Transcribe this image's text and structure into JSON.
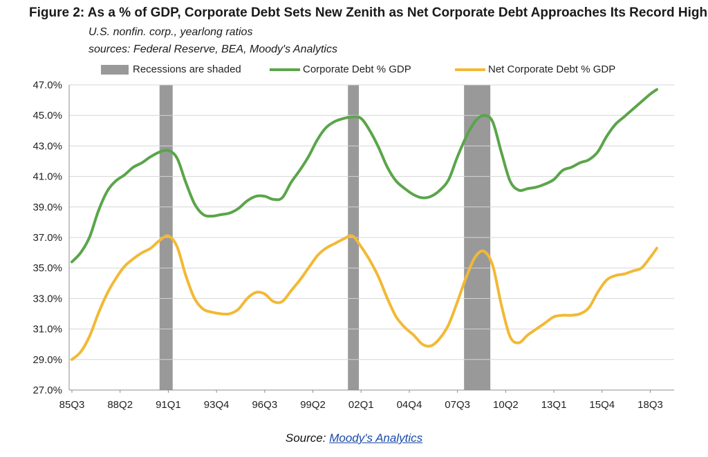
{
  "figure": {
    "title": "Figure 2: As a % of GDP, Corporate Debt Sets New Zenith as Net Corporate Debt Approaches Its Record High",
    "subtitle_1": "U.S. nonfin. corp., yearlong ratios",
    "subtitle_2": "sources: Federal Reserve, BEA, Moody's Analytics",
    "source_prefix": "Source: ",
    "source_link": "Moody's Analytics"
  },
  "legend": {
    "recessions": "Recessions are shaded",
    "corporate": "Corporate Debt % GDP",
    "net": "Net Corporate Debt % GDP"
  },
  "colors": {
    "corporate": "#5aa54a",
    "net": "#f2b935",
    "recession": "#999999",
    "grid": "#d6d6d6",
    "axis": "#8c8c8c"
  },
  "chart_data": {
    "type": "line",
    "title": "Figure 2: As a % of GDP, Corporate Debt Sets New Zenith as Net Corporate Debt Approaches Its Record High",
    "x_ticks": [
      "85Q3",
      "88Q2",
      "91Q1",
      "93Q4",
      "96Q3",
      "99Q2",
      "02Q1",
      "04Q4",
      "07Q3",
      "10Q2",
      "13Q1",
      "15Q4",
      "18Q3"
    ],
    "x_range": [
      1985.5,
      2018.875
    ],
    "y_ticks": [
      "27.0%",
      "29.0%",
      "31.0%",
      "33.0%",
      "35.0%",
      "37.0%",
      "39.0%",
      "41.0%",
      "43.0%",
      "45.0%",
      "47.0%"
    ],
    "ylim": [
      27,
      47
    ],
    "grid": "horizontal",
    "legend_position": "top",
    "recessions": [
      [
        1990.5,
        1991.25
      ],
      [
        2001.25,
        2001.875
      ],
      [
        2007.875,
        2009.375
      ]
    ],
    "series": [
      {
        "name": "Corporate Debt % GDP",
        "points": [
          [
            1985.5,
            35.4
          ],
          [
            1986.0,
            36.0
          ],
          [
            1986.5,
            37.0
          ],
          [
            1987.0,
            38.7
          ],
          [
            1987.5,
            40.0
          ],
          [
            1988.0,
            40.7
          ],
          [
            1988.5,
            41.1
          ],
          [
            1989.0,
            41.6
          ],
          [
            1989.5,
            41.9
          ],
          [
            1990.0,
            42.3
          ],
          [
            1990.5,
            42.6
          ],
          [
            1991.0,
            42.7
          ],
          [
            1991.5,
            42.2
          ],
          [
            1992.0,
            40.6
          ],
          [
            1992.5,
            39.2
          ],
          [
            1993.0,
            38.5
          ],
          [
            1993.5,
            38.4
          ],
          [
            1994.0,
            38.5
          ],
          [
            1994.5,
            38.6
          ],
          [
            1995.0,
            38.9
          ],
          [
            1995.5,
            39.4
          ],
          [
            1996.0,
            39.7
          ],
          [
            1996.5,
            39.7
          ],
          [
            1997.0,
            39.5
          ],
          [
            1997.5,
            39.6
          ],
          [
            1998.0,
            40.6
          ],
          [
            1998.5,
            41.4
          ],
          [
            1999.0,
            42.3
          ],
          [
            1999.5,
            43.4
          ],
          [
            2000.0,
            44.2
          ],
          [
            2000.5,
            44.6
          ],
          [
            2001.0,
            44.8
          ],
          [
            2001.5,
            44.9
          ],
          [
            2002.0,
            44.8
          ],
          [
            2002.5,
            44.0
          ],
          [
            2003.0,
            42.9
          ],
          [
            2003.5,
            41.6
          ],
          [
            2004.0,
            40.7
          ],
          [
            2004.5,
            40.2
          ],
          [
            2005.0,
            39.8
          ],
          [
            2005.5,
            39.6
          ],
          [
            2006.0,
            39.7
          ],
          [
            2006.5,
            40.1
          ],
          [
            2007.0,
            40.8
          ],
          [
            2007.5,
            42.3
          ],
          [
            2008.0,
            43.6
          ],
          [
            2008.5,
            44.6
          ],
          [
            2009.0,
            45.0
          ],
          [
            2009.5,
            44.6
          ],
          [
            2010.0,
            42.6
          ],
          [
            2010.5,
            40.7
          ],
          [
            2011.0,
            40.1
          ],
          [
            2011.5,
            40.2
          ],
          [
            2012.0,
            40.3
          ],
          [
            2012.5,
            40.5
          ],
          [
            2013.0,
            40.8
          ],
          [
            2013.5,
            41.4
          ],
          [
            2014.0,
            41.6
          ],
          [
            2014.5,
            41.9
          ],
          [
            2015.0,
            42.1
          ],
          [
            2015.5,
            42.6
          ],
          [
            2016.0,
            43.6
          ],
          [
            2016.5,
            44.4
          ],
          [
            2017.0,
            44.9
          ],
          [
            2017.5,
            45.4
          ],
          [
            2018.0,
            45.9
          ],
          [
            2018.5,
            46.4
          ],
          [
            2018.875,
            46.7
          ]
        ]
      },
      {
        "name": "Net Corporate Debt % GDP",
        "points": [
          [
            1985.5,
            29.0
          ],
          [
            1986.0,
            29.5
          ],
          [
            1986.5,
            30.5
          ],
          [
            1987.0,
            32.0
          ],
          [
            1987.5,
            33.3
          ],
          [
            1988.0,
            34.3
          ],
          [
            1988.5,
            35.1
          ],
          [
            1989.0,
            35.6
          ],
          [
            1989.5,
            36.0
          ],
          [
            1990.0,
            36.3
          ],
          [
            1990.5,
            36.8
          ],
          [
            1991.0,
            37.1
          ],
          [
            1991.5,
            36.4
          ],
          [
            1992.0,
            34.5
          ],
          [
            1992.5,
            33.0
          ],
          [
            1993.0,
            32.3
          ],
          [
            1993.5,
            32.1
          ],
          [
            1994.0,
            32.0
          ],
          [
            1994.5,
            32.0
          ],
          [
            1995.0,
            32.3
          ],
          [
            1995.5,
            33.0
          ],
          [
            1996.0,
            33.4
          ],
          [
            1996.5,
            33.3
          ],
          [
            1997.0,
            32.8
          ],
          [
            1997.5,
            32.8
          ],
          [
            1998.0,
            33.5
          ],
          [
            1998.5,
            34.2
          ],
          [
            1999.0,
            35.0
          ],
          [
            1999.5,
            35.8
          ],
          [
            2000.0,
            36.3
          ],
          [
            2000.5,
            36.6
          ],
          [
            2001.0,
            36.9
          ],
          [
            2001.5,
            37.1
          ],
          [
            2002.0,
            36.4
          ],
          [
            2002.5,
            35.5
          ],
          [
            2003.0,
            34.4
          ],
          [
            2003.5,
            33.0
          ],
          [
            2004.0,
            31.8
          ],
          [
            2004.5,
            31.1
          ],
          [
            2005.0,
            30.6
          ],
          [
            2005.5,
            30.0
          ],
          [
            2006.0,
            29.9
          ],
          [
            2006.5,
            30.4
          ],
          [
            2007.0,
            31.3
          ],
          [
            2007.5,
            32.8
          ],
          [
            2008.0,
            34.4
          ],
          [
            2008.5,
            35.7
          ],
          [
            2009.0,
            36.1
          ],
          [
            2009.5,
            35.2
          ],
          [
            2010.0,
            32.6
          ],
          [
            2010.5,
            30.5
          ],
          [
            2011.0,
            30.1
          ],
          [
            2011.5,
            30.6
          ],
          [
            2012.0,
            31.0
          ],
          [
            2012.5,
            31.4
          ],
          [
            2013.0,
            31.8
          ],
          [
            2013.5,
            31.9
          ],
          [
            2014.0,
            31.9
          ],
          [
            2014.5,
            32.0
          ],
          [
            2015.0,
            32.4
          ],
          [
            2015.5,
            33.4
          ],
          [
            2016.0,
            34.2
          ],
          [
            2016.5,
            34.5
          ],
          [
            2017.0,
            34.6
          ],
          [
            2017.5,
            34.8
          ],
          [
            2018.0,
            35.0
          ],
          [
            2018.5,
            35.7
          ],
          [
            2018.875,
            36.3
          ]
        ]
      }
    ]
  }
}
